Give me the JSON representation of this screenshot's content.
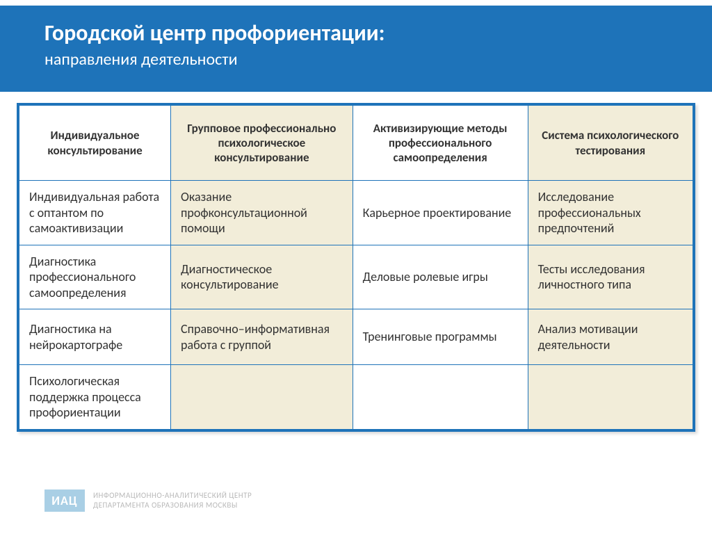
{
  "colors": {
    "accent": "#1e73b9",
    "alt_bg": "#f2edd9",
    "text": "#333333",
    "footer_text": "#b9b9b9",
    "logo_bg": "#a9cfe5"
  },
  "header": {
    "title": "Городской центр профориентации:",
    "subtitle": "направления деятельности"
  },
  "table": {
    "type": "table",
    "column_widths_pct": [
      22.5,
      27,
      26,
      24.5
    ],
    "alt_columns": [
      1,
      3
    ],
    "header_fontsize": 17,
    "cell_fontsize": 18,
    "columns": [
      "Индивидуальное консультирование",
      "Групповое профессионально психологическое консультирование",
      "Активизирующие методы профессионального самоопределения",
      "Система психологического тестирования"
    ],
    "rows": [
      [
        "Индивидуальная работа с оптантом  по самоактивизации",
        "Оказание профконсультационной помощи",
        "Карьерное проектирование",
        "Исследование профессиональных предпочтений"
      ],
      [
        "Диагностика профессионального самоопределения",
        "Диагностическое консультирование",
        "Деловые ролевые игры",
        "Тесты исследования личностного типа"
      ],
      [
        "Диагностика на нейрокартографе",
        "Справочно–информативная работа с группой",
        "Тренинговые программы",
        "Анализ мотивации деятельности"
      ],
      [
        "Психологическая поддержка процесса профориентации",
        "",
        "",
        ""
      ]
    ]
  },
  "footer": {
    "logo_text": "ИАЦ",
    "line1": "ИНФОРМАЦИОННО-АНАЛИТИЧЕСКИЙ ЦЕНТР",
    "line2": "ДЕПАРТАМЕНТА ОБРАЗОВАНИЯ МОСКВЫ"
  }
}
